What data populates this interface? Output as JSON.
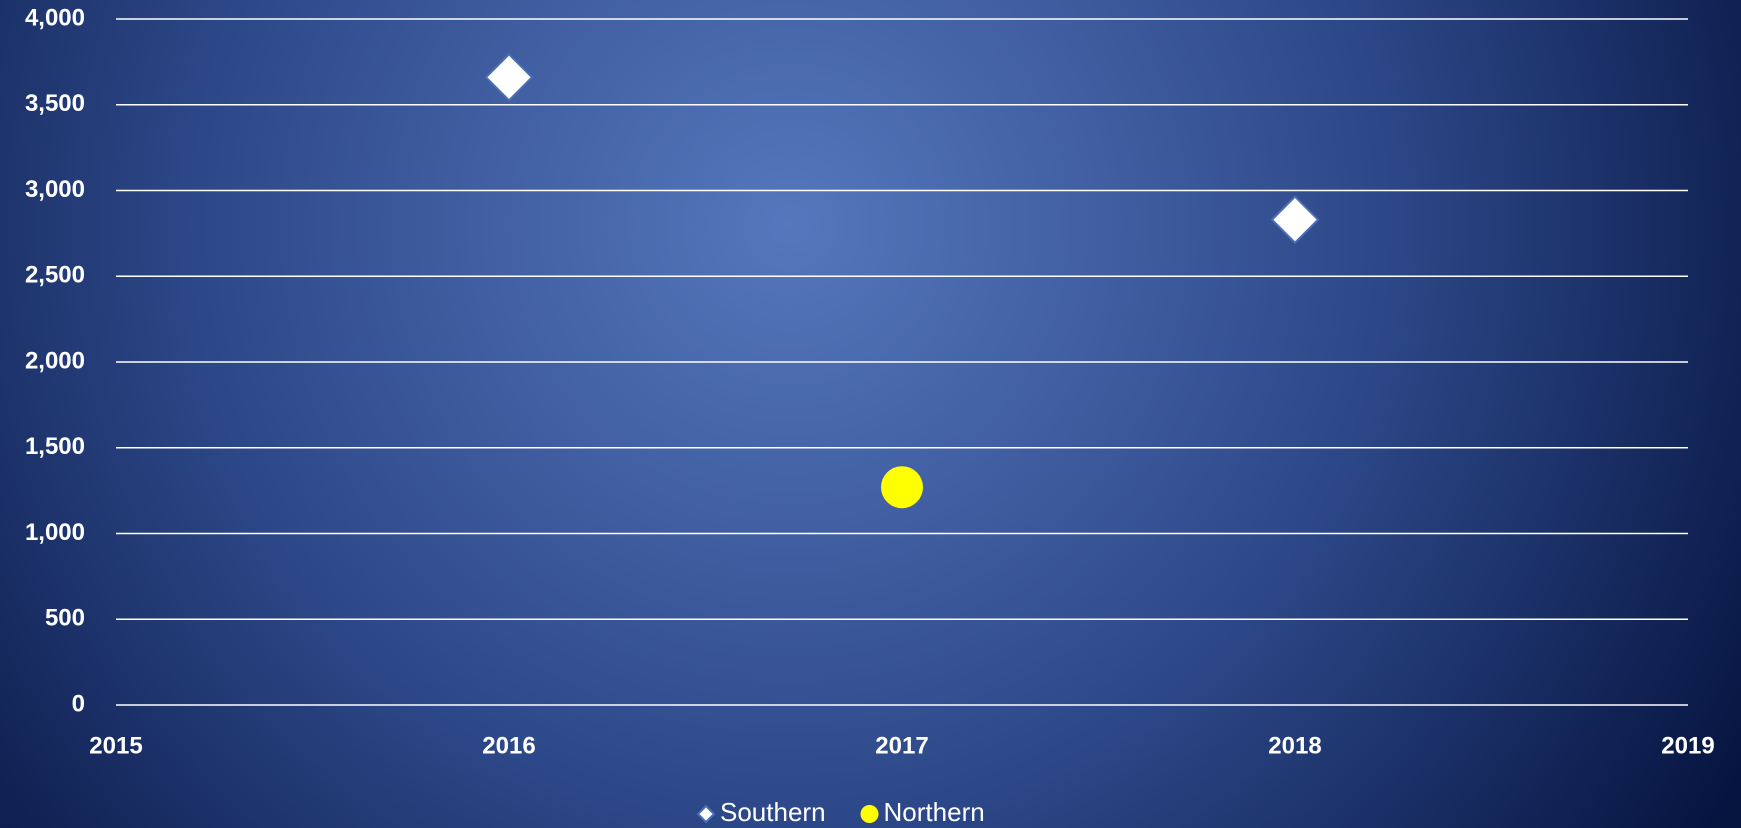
{
  "chart_data": {
    "type": "scatter",
    "series": [
      {
        "name": "Southern",
        "color": "#ffffff",
        "marker": "diamond",
        "x": [
          2016,
          2018
        ],
        "values": [
          3660,
          2830
        ]
      },
      {
        "name": "Northern",
        "color": "#ffff00",
        "marker": "circle",
        "x": [
          2017
        ],
        "values": [
          1270
        ]
      }
    ],
    "xlim": [
      2015,
      2019
    ],
    "xticks": [
      2015,
      2016,
      2017,
      2018,
      2019
    ],
    "ylim": [
      0,
      4000
    ],
    "yticks": [
      0,
      500,
      {
        "value": 1000,
        "label": "1,000"
      },
      {
        "value": 1500,
        "label": "1,500"
      },
      {
        "value": 2000,
        "label": "2,000"
      },
      {
        "value": 2500,
        "label": "2,500"
      },
      {
        "value": 3000,
        "label": "3,000"
      },
      {
        "value": 3500,
        "label": "3,500"
      },
      {
        "value": 4000,
        "label": "4,000"
      }
    ],
    "grid": true,
    "legend": "bottom"
  }
}
